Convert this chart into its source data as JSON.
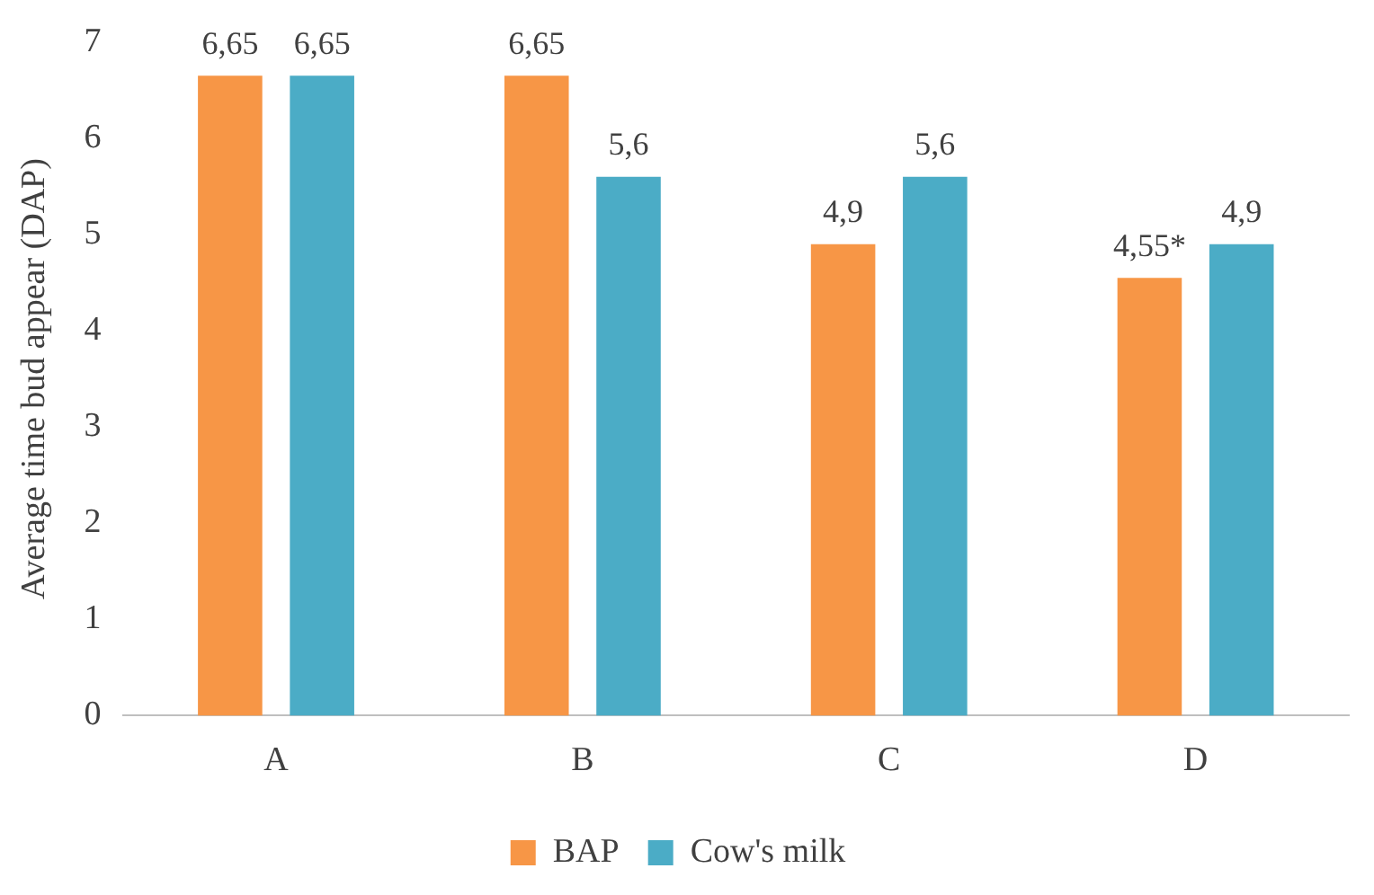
{
  "chart_data": {
    "type": "bar",
    "ylabel": "Average time bud appear (DAP)",
    "categories": [
      "A",
      "B",
      "C",
      "D"
    ],
    "series": [
      {
        "name": "BAP",
        "color": "#f79646",
        "values": [
          6.65,
          6.65,
          4.9,
          4.55
        ],
        "value_labels": [
          "6,65",
          "6,65",
          "4,9",
          "4,55*"
        ]
      },
      {
        "name": "Cow's milk",
        "color": "#4bacc6",
        "values": [
          6.65,
          5.6,
          5.6,
          4.9
        ],
        "value_labels": [
          "6,65",
          "5,6",
          "5,6",
          "4,9"
        ]
      }
    ],
    "ylim": [
      0,
      7
    ],
    "yticks": [
      0,
      1,
      2,
      3,
      4,
      5,
      6,
      7
    ],
    "grid": false,
    "legend": "bottom"
  }
}
